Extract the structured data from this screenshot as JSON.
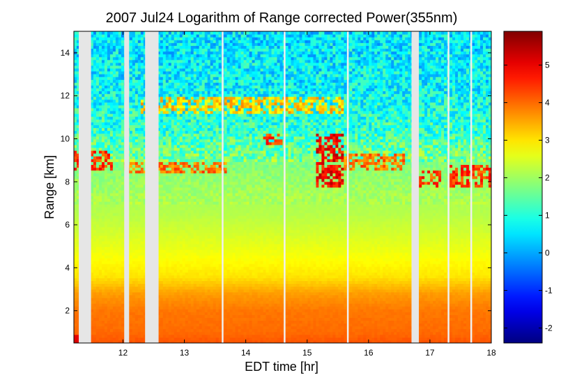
{
  "chart_data": {
    "type": "heatmap",
    "title": "2007 Jul24  Logarithm of Range corrected Power(355nm)",
    "xlabel": "EDT time [hr]",
    "ylabel": "Range [km]",
    "xlim": [
      11.2,
      18.0
    ],
    "ylim": [
      0.5,
      15.0
    ],
    "x_ticks": [
      12,
      13,
      14,
      15,
      16,
      17,
      18
    ],
    "y_ticks": [
      2,
      4,
      6,
      8,
      10,
      12,
      14
    ],
    "colorbar": {
      "range": [
        -2.4,
        5.9
      ],
      "ticks": [
        -2,
        -1,
        0,
        1,
        2,
        3,
        4,
        5
      ],
      "colormap": "jet"
    },
    "data_gaps_hr": [
      [
        11.28,
        11.48
      ],
      [
        12.02,
        12.1
      ],
      [
        12.36,
        12.58
      ],
      [
        16.7,
        16.82
      ]
    ],
    "thin_gaps_hr": [
      13.62,
      14.63,
      15.66,
      17.3,
      17.67
    ],
    "value_profile": [
      {
        "range_km": 0.5,
        "value": 4.2
      },
      {
        "range_km": 1.0,
        "value": 4.0
      },
      {
        "range_km": 2.0,
        "value": 3.9
      },
      {
        "range_km": 2.8,
        "value": 3.6
      },
      {
        "range_km": 3.6,
        "value": 3.0
      },
      {
        "range_km": 5.0,
        "value": 2.6
      },
      {
        "range_km": 6.5,
        "value": 2.2
      },
      {
        "range_km": 7.8,
        "value": 2.0
      },
      {
        "range_km": 9.0,
        "value": 1.7
      },
      {
        "range_km": 10.5,
        "value": 1.1
      },
      {
        "range_km": 12.5,
        "value": 0.7
      },
      {
        "range_km": 15.0,
        "value": 0.5
      }
    ],
    "cloud_layers": [
      {
        "t0": 11.2,
        "t1": 11.85,
        "r0": 8.5,
        "r1": 9.5,
        "value": 5.0
      },
      {
        "t0": 12.0,
        "t1": 13.7,
        "r0": 8.4,
        "r1": 9.0,
        "value": 4.5
      },
      {
        "t0": 12.3,
        "t1": 15.6,
        "r0": 11.2,
        "r1": 12.0,
        "value": 3.8
      },
      {
        "t0": 14.3,
        "t1": 14.6,
        "r0": 9.7,
        "r1": 10.3,
        "value": 5.0
      },
      {
        "t0": 15.15,
        "t1": 15.6,
        "r0": 7.8,
        "r1": 10.2,
        "value": 5.5
      },
      {
        "t0": 15.6,
        "t1": 16.6,
        "r0": 8.6,
        "r1": 9.3,
        "value": 4.5
      },
      {
        "t0": 16.8,
        "t1": 17.2,
        "r0": 7.8,
        "r1": 8.6,
        "value": 5.0
      },
      {
        "t0": 17.3,
        "t1": 18.0,
        "r0": 7.8,
        "r1": 8.8,
        "value": 5.0
      }
    ]
  }
}
